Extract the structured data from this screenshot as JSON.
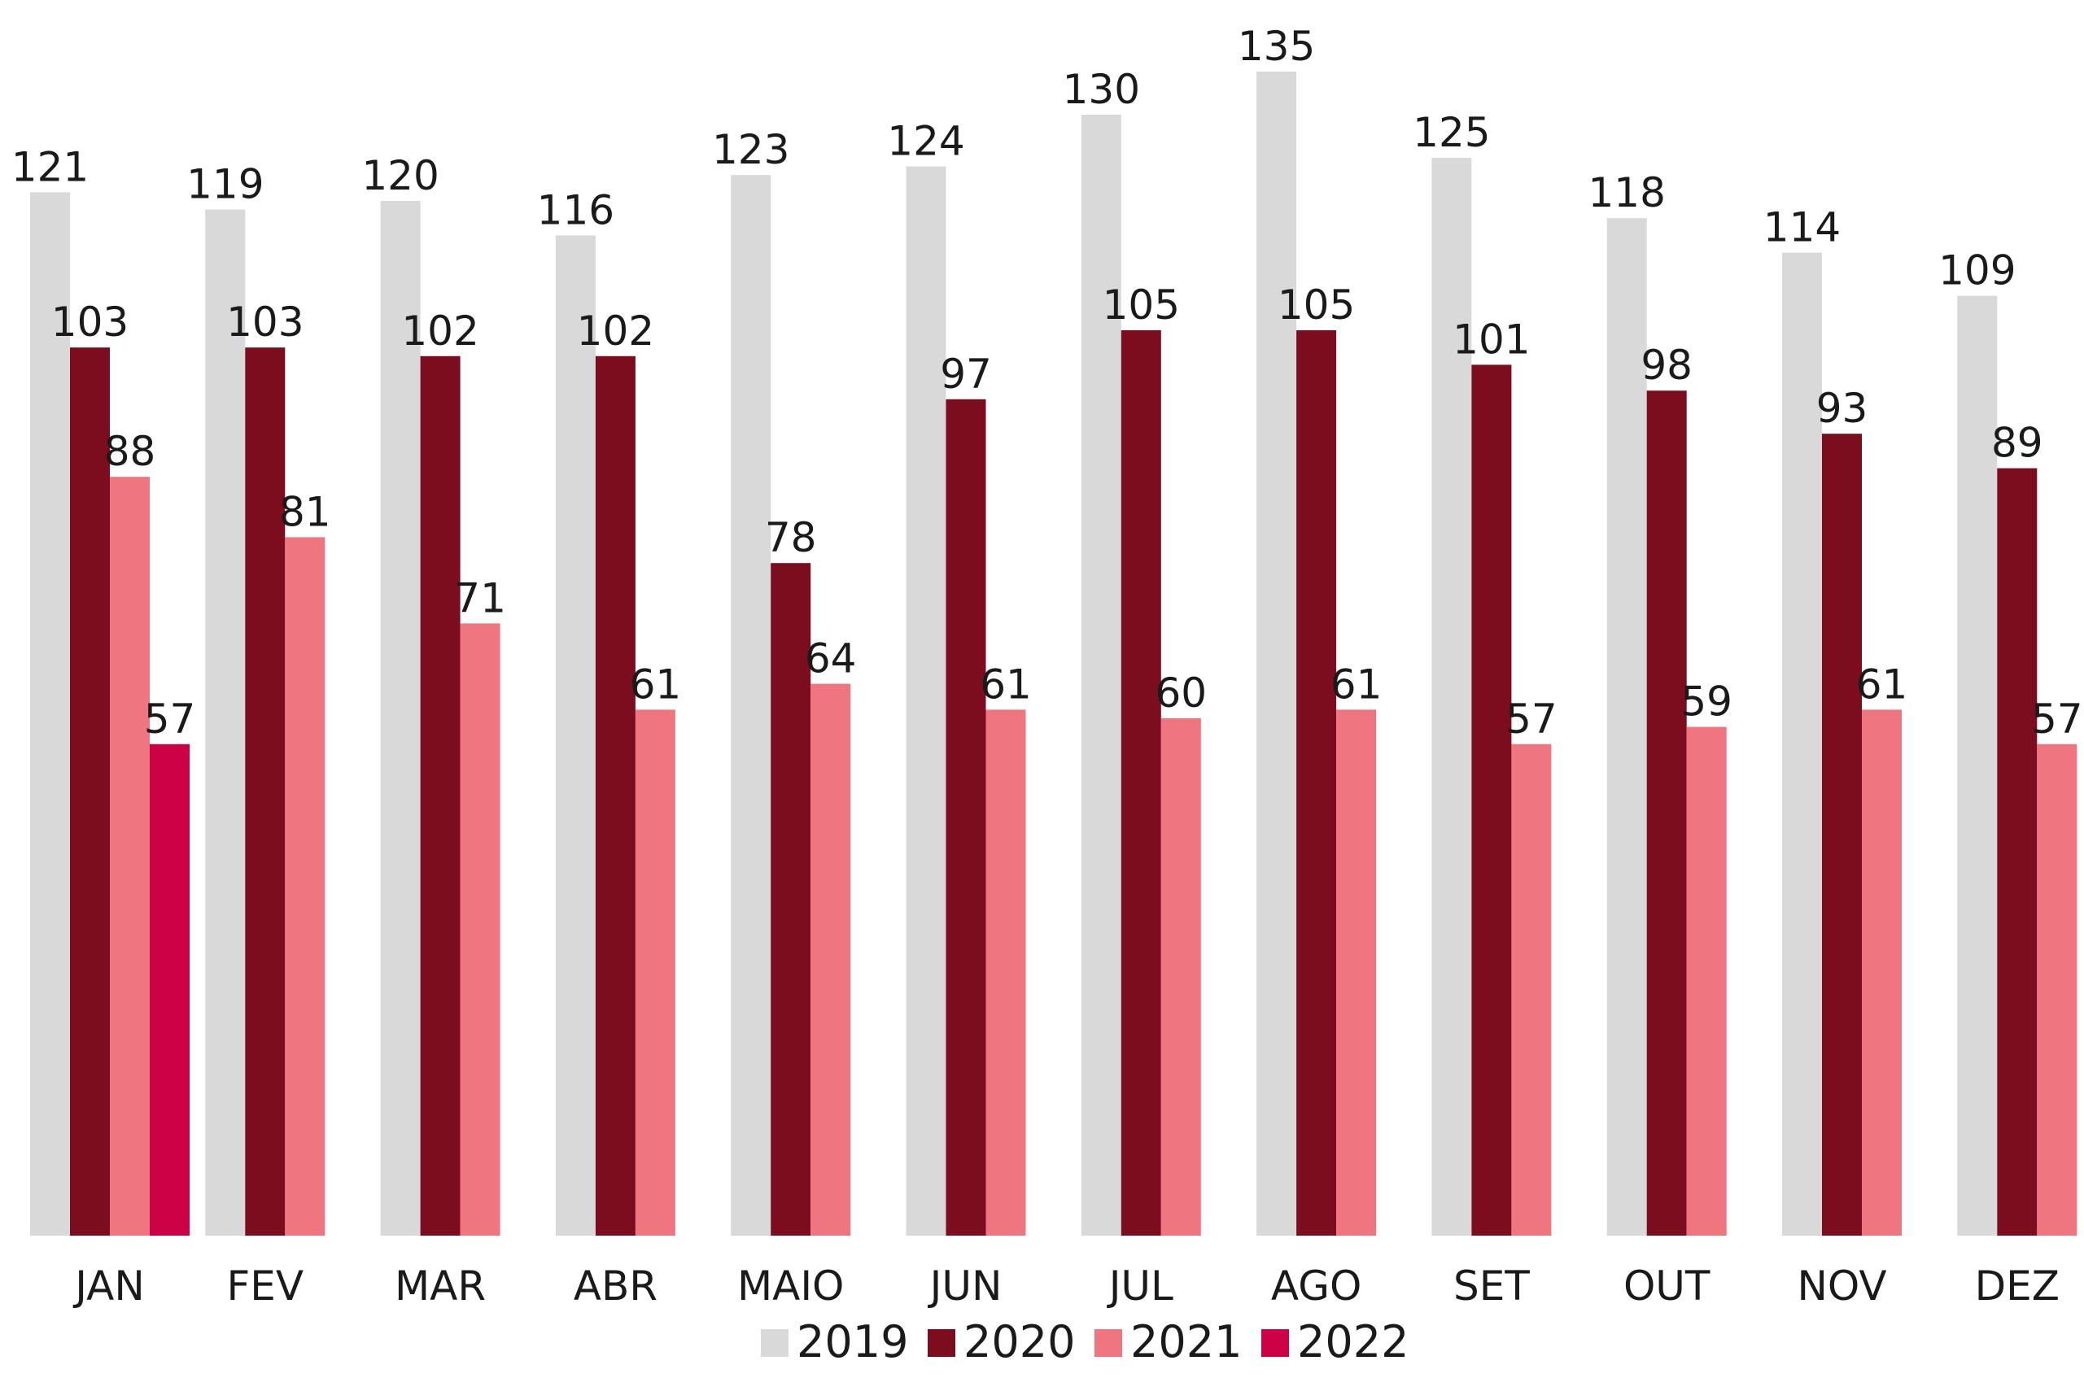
{
  "chart_data": {
    "type": "bar",
    "categories": [
      "JAN",
      "FEV",
      "MAR",
      "ABR",
      "MAIO",
      "JUN",
      "JUL",
      "AGO",
      "SET",
      "OUT",
      "NOV",
      "DEZ"
    ],
    "series": [
      {
        "name": "2019",
        "color": "#d9d9d9",
        "values": [
          121,
          119,
          120,
          116,
          123,
          124,
          130,
          135,
          125,
          118,
          114,
          109
        ]
      },
      {
        "name": "2020",
        "color": "#7b0d1e",
        "values": [
          103,
          103,
          102,
          102,
          78,
          97,
          105,
          105,
          101,
          98,
          93,
          89
        ]
      },
      {
        "name": "2021",
        "color": "#ef7680",
        "values": [
          88,
          81,
          71,
          61,
          64,
          61,
          60,
          61,
          57,
          59,
          61,
          57
        ]
      },
      {
        "name": "2022",
        "color": "#cc0044",
        "values": [
          57,
          null,
          null,
          null,
          null,
          null,
          null,
          null,
          null,
          null,
          null,
          null
        ]
      }
    ],
    "ylim": [
      0,
      135
    ],
    "grid": false,
    "legend_position": "bottom-center"
  }
}
